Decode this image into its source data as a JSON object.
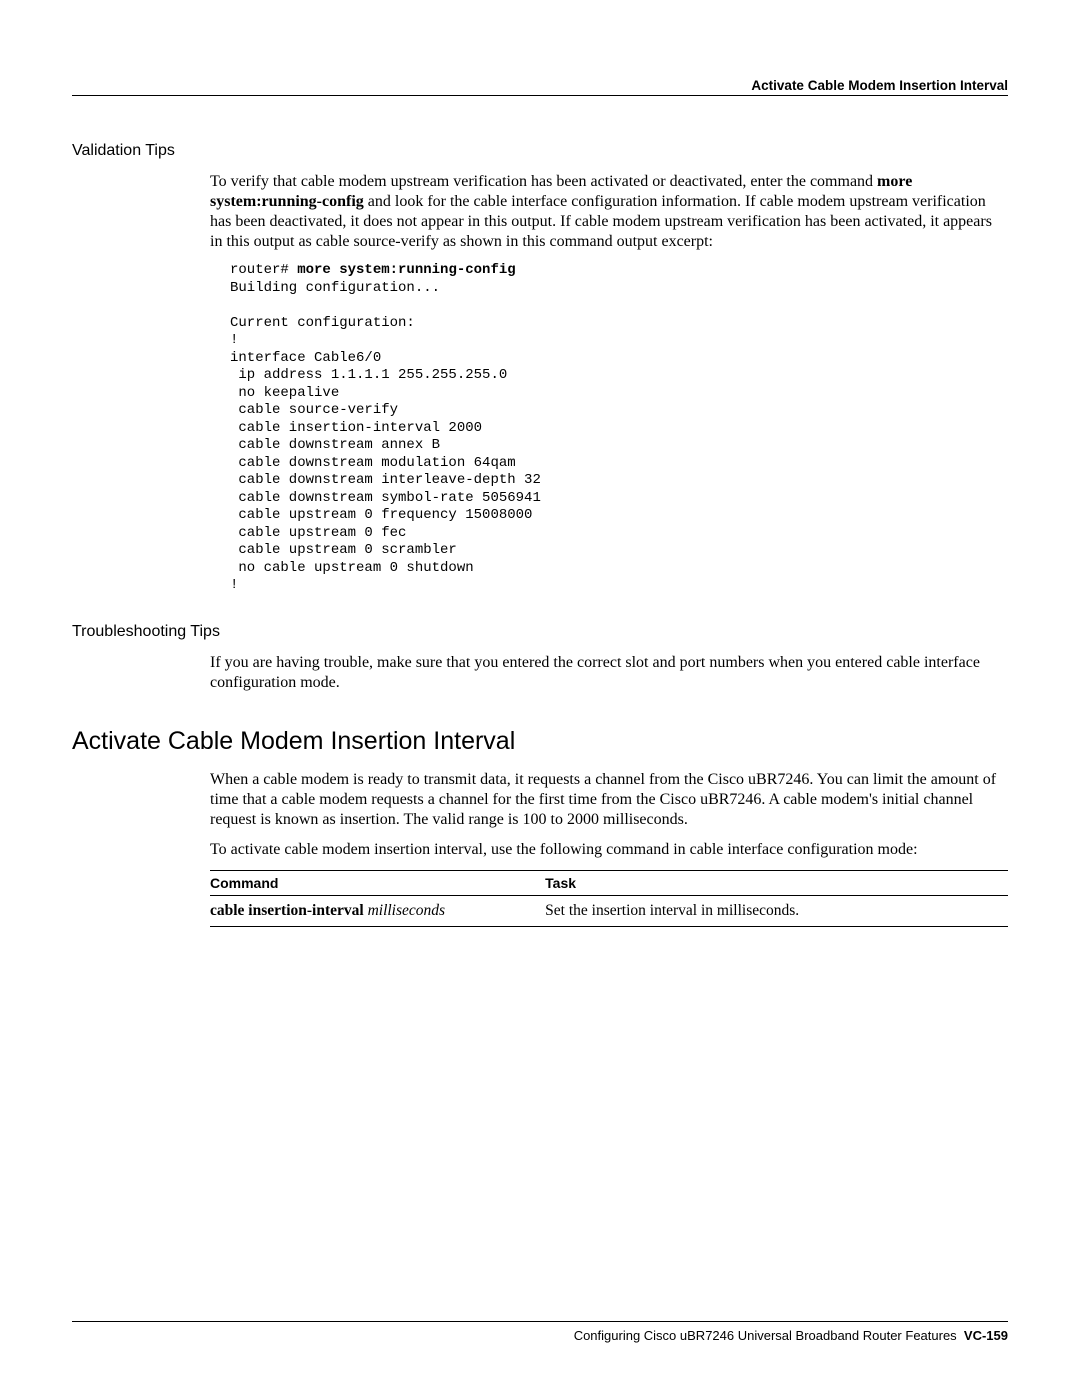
{
  "header": {
    "right_title": "Activate Cable Modem Insertion Interval"
  },
  "validation": {
    "heading": "Validation Tips",
    "para_pre": "To verify that cable modem upstream verification has been activated or deactivated, enter the command ",
    "para_bold": "more system:running-config",
    "para_post": " and look for the cable interface configuration information. If cable modem upstream verification has been deactivated, it does not appear in this output. If cable modem upstream verification has been activated, it appears in this output as cable source-verify as shown in this command output excerpt:",
    "code_prompt": "router# ",
    "code_cmd": "more system:running-config",
    "code_body": "Building configuration...\n\nCurrent configuration:\n!\ninterface Cable6/0\n ip address 1.1.1.1 255.255.255.0\n no keepalive\n cable source-verify\n cable insertion-interval 2000\n cable downstream annex B\n cable downstream modulation 64qam\n cable downstream interleave-depth 32\n cable downstream symbol-rate 5056941\n cable upstream 0 frequency 15008000\n cable upstream 0 fec\n cable upstream 0 scrambler\n no cable upstream 0 shutdown\n!"
  },
  "troubleshoot": {
    "heading": "Troubleshooting Tips",
    "para": "If you are having trouble, make sure that you entered the correct slot and port numbers when you entered cable interface configuration mode."
  },
  "insertion": {
    "heading": "Activate Cable Modem Insertion Interval",
    "para1": "When a cable modem is ready to transmit data, it requests a channel from the Cisco uBR7246. You can limit the amount of time that a cable modem requests a channel for the first time from the Cisco uBR7246. A cable modem's initial channel request is known as insertion. The valid range is 100 to 2000 milliseconds.",
    "para2": "To activate cable modem insertion interval, use the following command in cable interface configuration mode:",
    "table": {
      "col1_header": "Command",
      "col2_header": "Task",
      "row1_cmd_bold": "cable insertion-interval",
      "row1_cmd_ital": "milliseconds",
      "row1_task": "Set the insertion interval in milliseconds."
    }
  },
  "footer": {
    "text": "Configuring Cisco uBR7246 Universal Broadband Router Features",
    "page": "VC-159"
  }
}
